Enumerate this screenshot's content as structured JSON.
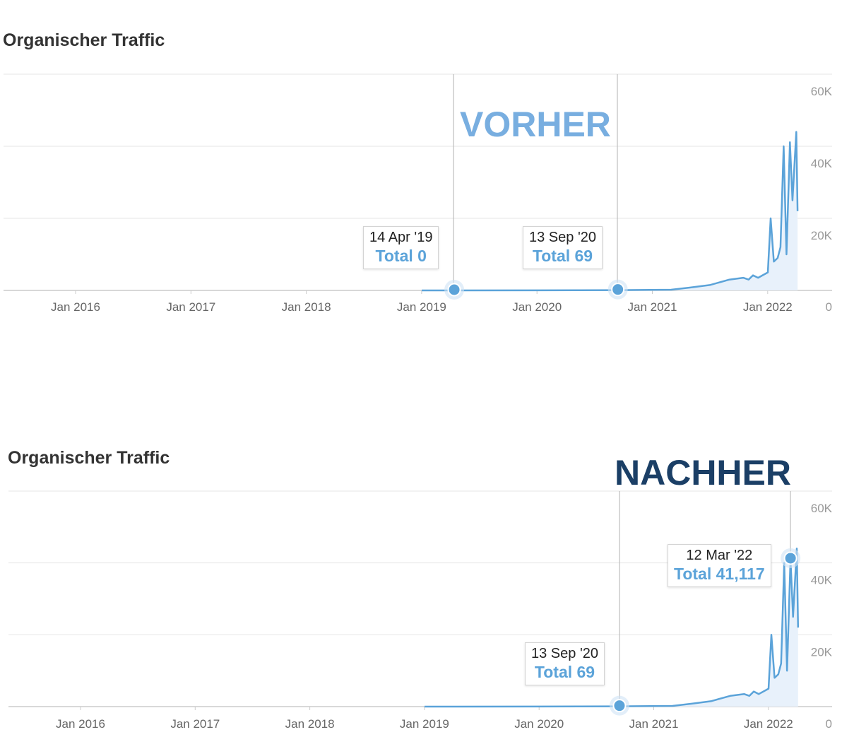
{
  "chart_data": [
    {
      "type": "area",
      "title": "Organischer Traffic",
      "annotation_label": "VORHER",
      "annotation_color": "#78aee0",
      "series_color": "#5ba3d9",
      "x_ticks": [
        "Jan 2016",
        "Jan 2017",
        "Jan 2018",
        "Jan 2019",
        "Jan 2020",
        "Jan 2021",
        "Jan 2022"
      ],
      "y_ticks": [
        "0",
        "20K",
        "40K",
        "60K"
      ],
      "ylim": [
        0,
        60000
      ],
      "xlim": [
        "2015-05-15",
        "2022-05-15"
      ],
      "y_axis_side": "right",
      "grid": true,
      "series": [
        {
          "x": [
            "2019-01-01",
            "2019-04-14",
            "2020-01-01",
            "2020-09-13",
            "2021-03-01",
            "2021-05-01",
            "2021-07-01",
            "2021-09-01",
            "2021-10-15",
            "2021-11-01",
            "2021-11-15",
            "2021-12-01",
            "2022-01-01",
            "2022-01-10",
            "2022-01-20",
            "2022-02-01",
            "2022-02-10",
            "2022-02-20",
            "2022-03-01",
            "2022-03-12",
            "2022-03-20",
            "2022-04-01",
            "2022-04-05"
          ],
          "values": [
            0,
            0,
            20,
            69,
            200,
            800,
            1500,
            3000,
            3500,
            3000,
            4200,
            3500,
            5000,
            20000,
            8000,
            9000,
            12000,
            40000,
            10000,
            41117,
            25000,
            44000,
            22000
          ]
        }
      ],
      "tooltips": [
        {
          "date": "14 Apr '19",
          "total": "Total 0",
          "x": "2019-04-14",
          "y": 0
        },
        {
          "date": "13 Sep '20",
          "total": "Total 69",
          "x": "2020-09-13",
          "y": 69
        }
      ]
    },
    {
      "type": "area",
      "title": "Organischer Traffic",
      "annotation_label": "NACHHER",
      "annotation_color": "#1b3f66",
      "series_color": "#5ba3d9",
      "x_ticks": [
        "Jan 2016",
        "Jan 2017",
        "Jan 2018",
        "Jan 2019",
        "Jan 2020",
        "Jan 2021",
        "Jan 2022"
      ],
      "y_ticks": [
        "0",
        "20K",
        "40K",
        "60K"
      ],
      "ylim": [
        0,
        60000
      ],
      "xlim": [
        "2015-05-15",
        "2022-05-15"
      ],
      "y_axis_side": "right",
      "grid": true,
      "series": [
        {
          "x": [
            "2019-01-01",
            "2019-04-14",
            "2020-01-01",
            "2020-09-13",
            "2021-03-01",
            "2021-05-01",
            "2021-07-01",
            "2021-09-01",
            "2021-10-15",
            "2021-11-01",
            "2021-11-15",
            "2021-12-01",
            "2022-01-01",
            "2022-01-10",
            "2022-01-20",
            "2022-02-01",
            "2022-02-10",
            "2022-02-20",
            "2022-03-01",
            "2022-03-12",
            "2022-03-20",
            "2022-04-01",
            "2022-04-05"
          ],
          "values": [
            0,
            0,
            20,
            69,
            200,
            800,
            1500,
            3000,
            3500,
            3000,
            4200,
            3500,
            5000,
            20000,
            8000,
            9000,
            12000,
            40000,
            10000,
            41117,
            25000,
            44000,
            22000
          ]
        }
      ],
      "tooltips": [
        {
          "date": "12 Mar '22",
          "total": "Total 41,117",
          "x": "2022-03-12",
          "y": 41117
        },
        {
          "date": "13 Sep '20",
          "total": "Total 69",
          "x": "2020-09-13",
          "y": 69
        }
      ]
    }
  ]
}
